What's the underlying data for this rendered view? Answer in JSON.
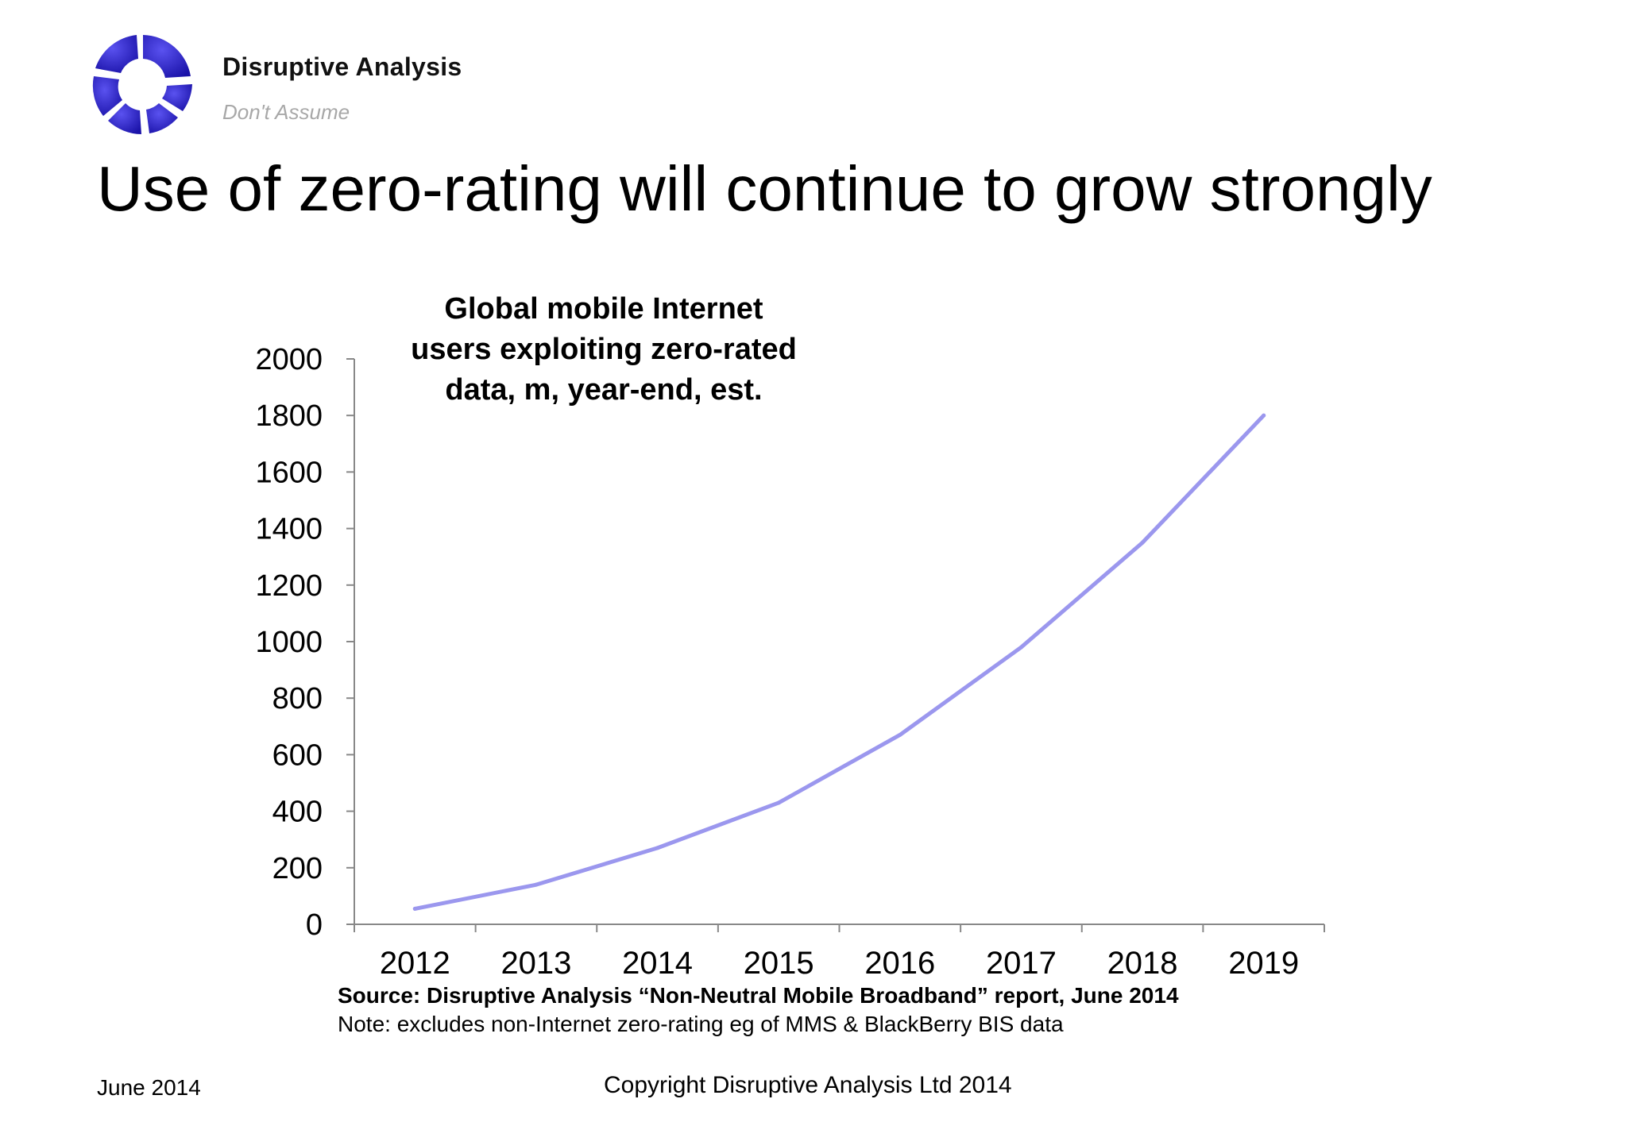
{
  "brand": {
    "name": "Disruptive Analysis",
    "tagline": "Don't Assume",
    "logo_color": "#2a1fc4",
    "logo_icon": "segmented-ring-logo"
  },
  "slide_title": "Use of zero-rating will continue to grow strongly",
  "chart_data": {
    "type": "line",
    "title": "Global mobile Internet users exploiting zero-rated data, m, year-end, est.",
    "title_lines": [
      "Global mobile Internet",
      "users exploiting zero-rated",
      "data, m, year-end, est."
    ],
    "xlabel": "",
    "ylabel": "",
    "categories": [
      "2012",
      "2013",
      "2014",
      "2015",
      "2016",
      "2017",
      "2018",
      "2019"
    ],
    "series": [
      {
        "values": [
          55,
          140,
          270,
          430,
          670,
          980,
          1350,
          1800
        ],
        "color": "#9b97ee"
      }
    ],
    "ylim": [
      0,
      2000
    ],
    "yticks": [
      0,
      200,
      400,
      600,
      800,
      1000,
      1200,
      1400,
      1600,
      1800,
      2000
    ],
    "grid": false,
    "legend": "none"
  },
  "source": "Source: Disruptive Analysis “Non-Neutral Mobile Broadband” report, June 2014",
  "note": "Note: excludes non-Internet zero-rating eg of MMS & BlackBerry BIS data",
  "footer": {
    "date": "June 2014",
    "copyright": "Copyright Disruptive Analysis Ltd 2014"
  }
}
